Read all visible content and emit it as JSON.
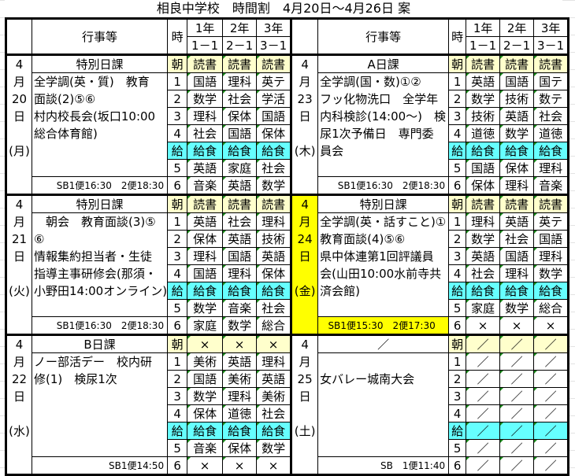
{
  "title": "相良中学校　時間割　4月20日～4月26日 案",
  "header": {
    "event": "行事等",
    "period": "時",
    "grades": [
      "1年",
      "2年",
      "3年"
    ],
    "classes": [
      "1－1",
      "2－1",
      "3－1"
    ]
  },
  "colors": {
    "morning": "#ffffcc",
    "lunch": "#66ffff",
    "highlight": "#ffff00"
  },
  "days": [
    {
      "month": "4",
      "unit": "月",
      "day": "20",
      "suffix": "日",
      "weekday": "(月)",
      "type": "特別日課",
      "events": "全学調(英・質)　教育\n面談(2)⑤⑥\n村内校長会(坂口10:00\n総合体育館)",
      "footer": "SB1便16:30　2便18:30",
      "highlight": false,
      "periods": [
        {
          "label": "朝",
          "subjects": [
            "読書",
            "読書",
            "読書"
          ]
        },
        {
          "label": "1",
          "subjects": [
            "国語",
            "理科",
            "英テ"
          ]
        },
        {
          "label": "2",
          "subjects": [
            "数学",
            "社会",
            "学活"
          ]
        },
        {
          "label": "3",
          "subjects": [
            "理科",
            "保体",
            "国語"
          ]
        },
        {
          "label": "4",
          "subjects": [
            "社会",
            "国語",
            "保体"
          ]
        },
        {
          "label": "給",
          "subjects": [
            "給食",
            "給食",
            "給食"
          ]
        },
        {
          "label": "5",
          "subjects": [
            "英語",
            "家庭",
            "社会"
          ]
        },
        {
          "label": "6",
          "subjects": [
            "音楽",
            "英語",
            "数学"
          ]
        }
      ]
    },
    {
      "month": "4",
      "unit": "月",
      "day": "21",
      "suffix": "日",
      "weekday": "(火)",
      "type": "特別日課",
      "events": "　朝会　教育面談(3)⑤\n⑥\n情報集約担当者・生徒\n指導主事研修会(那須・\n小野田14:00オンライン)",
      "footer": "SB1便16:30　2便18:30",
      "highlight": false,
      "periods": [
        {
          "label": "朝",
          "subjects": [
            "読書",
            "読書",
            "読書"
          ]
        },
        {
          "label": "1",
          "subjects": [
            "英語",
            "社会",
            "理科"
          ]
        },
        {
          "label": "2",
          "subjects": [
            "保体",
            "英語",
            "技術"
          ]
        },
        {
          "label": "3",
          "subjects": [
            "理科",
            "国語",
            "英語"
          ]
        },
        {
          "label": "4",
          "subjects": [
            "国語",
            "理科",
            "保体"
          ]
        },
        {
          "label": "給",
          "subjects": [
            "給食",
            "給食",
            "給食"
          ]
        },
        {
          "label": "5",
          "subjects": [
            "数学",
            "音楽",
            "社会"
          ]
        },
        {
          "label": "6",
          "subjects": [
            "家庭",
            "数学",
            "総合"
          ]
        }
      ]
    },
    {
      "month": "4",
      "unit": "月",
      "day": "22",
      "suffix": "日",
      "weekday": "(水)",
      "type": "B日課",
      "events": "ノー部活デー　校内研\n修(1)　検尿1次",
      "footer": "SB1便14:50",
      "highlight": false,
      "periods": [
        {
          "label": "朝",
          "subjects": [
            "×",
            "×",
            "×"
          ]
        },
        {
          "label": "1",
          "subjects": [
            "美術",
            "英語",
            "理科"
          ]
        },
        {
          "label": "2",
          "subjects": [
            "国語",
            "美術",
            "英語"
          ]
        },
        {
          "label": "3",
          "subjects": [
            "数学",
            "理科",
            "美術"
          ]
        },
        {
          "label": "4",
          "subjects": [
            "保体",
            "道徳",
            "社会"
          ]
        },
        {
          "label": "給",
          "subjects": [
            "給食",
            "給食",
            "給食"
          ]
        },
        {
          "label": "5",
          "subjects": [
            "音楽",
            "保体",
            "数学"
          ]
        },
        {
          "label": "6",
          "subjects": [
            "×",
            "×",
            "×"
          ]
        }
      ]
    },
    {
      "month": "4",
      "unit": "月",
      "day": "23",
      "suffix": "日",
      "weekday": "(木)",
      "type": "A日課",
      "events": "全学調(国・数)①②\nフッ化物洗口　全学年\n内科検診(14:00～)　検\n尿1次予備日　専門委\n員会",
      "footer": "SB1便16:30　2便18:30",
      "highlight": false,
      "periods": [
        {
          "label": "朝",
          "subjects": [
            "読書",
            "読書",
            "読書"
          ]
        },
        {
          "label": "1",
          "subjects": [
            "英語",
            "国語",
            "国テ"
          ]
        },
        {
          "label": "2",
          "subjects": [
            "数学",
            "技術",
            "数テ"
          ]
        },
        {
          "label": "3",
          "subjects": [
            "技術",
            "英語",
            "社会"
          ]
        },
        {
          "label": "4",
          "subjects": [
            "道徳",
            "数学",
            "道徳"
          ]
        },
        {
          "label": "給",
          "subjects": [
            "給食",
            "給食",
            "給食"
          ]
        },
        {
          "label": "5",
          "subjects": [
            "国語",
            "保体",
            "理科"
          ]
        },
        {
          "label": "6",
          "subjects": [
            "保体",
            "理科",
            "音楽"
          ]
        }
      ]
    },
    {
      "month": "4",
      "unit": "月",
      "day": "24",
      "suffix": "日",
      "weekday": "(金)",
      "type": "特別日課",
      "events": "全学調(英・話すこと)①\n教育面談(4)⑤⑥\n県中体連第1回評議員\n会(山田10:00水前寺共\n済会館)",
      "footer": "SB1便15:30　2便17:30",
      "highlight": true,
      "periods": [
        {
          "label": "朝",
          "subjects": [
            "読書",
            "読書",
            "読書"
          ]
        },
        {
          "label": "1",
          "subjects": [
            "理科",
            "英語",
            "英テ"
          ]
        },
        {
          "label": "2",
          "subjects": [
            "数学",
            "社会",
            "国語"
          ]
        },
        {
          "label": "3",
          "subjects": [
            "英語",
            "国語",
            "理科"
          ]
        },
        {
          "label": "4",
          "subjects": [
            "社会",
            "理科",
            "数学"
          ]
        },
        {
          "label": "給",
          "subjects": [
            "給食",
            "給食",
            "給食"
          ]
        },
        {
          "label": "5",
          "subjects": [
            "家庭",
            "数学",
            "総合"
          ]
        },
        {
          "label": "6",
          "subjects": [
            "×",
            "×",
            "×"
          ]
        }
      ]
    },
    {
      "month": "4",
      "unit": "月",
      "day": "25",
      "suffix": "日",
      "weekday": "(土)",
      "type": "／",
      "events": "\n女バレー城南大会",
      "footer": "SB　1便11:40",
      "highlight": false,
      "periods": [
        {
          "label": "朝",
          "subjects": [
            "／",
            "／",
            "／"
          ]
        },
        {
          "label": "1",
          "subjects": [
            "／",
            "／",
            "／"
          ]
        },
        {
          "label": "2",
          "subjects": [
            "／",
            "／",
            "／"
          ]
        },
        {
          "label": "3",
          "subjects": [
            "／",
            "／",
            "／"
          ]
        },
        {
          "label": "4",
          "subjects": [
            "／",
            "／",
            "／"
          ]
        },
        {
          "label": "給",
          "subjects": [
            "／",
            "／",
            "／"
          ]
        },
        {
          "label": "5",
          "subjects": [
            "／",
            "／",
            "／"
          ]
        },
        {
          "label": "6",
          "subjects": [
            "／",
            "／",
            "／"
          ]
        }
      ]
    }
  ]
}
